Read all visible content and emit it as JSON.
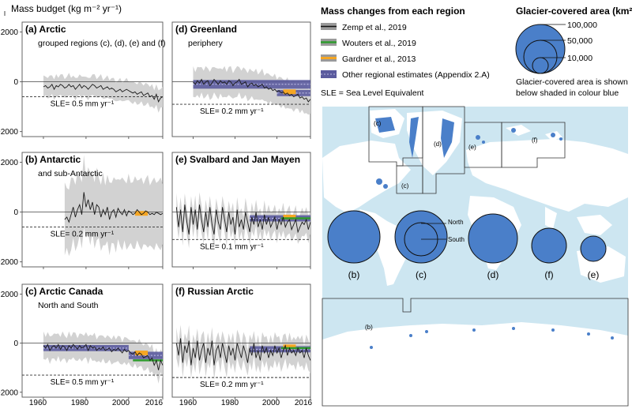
{
  "figure": {
    "ylabel": "Mass budget (kg m⁻² yr⁻¹)",
    "x_ticks": [
      "1960",
      "1980",
      "2000",
      "2016"
    ],
    "y_ticks": [
      "2000",
      "0",
      "−2000"
    ],
    "legend": {
      "title": "Mass changes from each region",
      "entries": [
        {
          "label": "Zemp et al., 2019",
          "color": "#111111"
        },
        {
          "label": "Wouters et al., 2019",
          "color": "#2e9b2e"
        },
        {
          "label": "Gardner et al., 2013",
          "color": "#f5a623"
        },
        {
          "label": "Other regional estimates (Appendix 2.A)",
          "color": "#5b5b9e"
        }
      ],
      "sle_note": "SLE = Sea Level Equivalent"
    },
    "area_legend": {
      "title": "Glacier-covered area (km²)",
      "values": [
        "100,000",
        "50,000",
        "10,000"
      ],
      "note_line1": "Glacier-covered area is shown",
      "note_line2": "below shaded in colour blue",
      "fill_color": "#4a7fc9"
    },
    "map": {
      "region_labels": [
        "(c)",
        "(d)",
        "(e)",
        "(f)",
        "(c)",
        "(b)"
      ],
      "circle_labels": [
        "(b)",
        "(c)",
        "(d)",
        "(f)",
        "(e)"
      ],
      "north": "North",
      "south": "South"
    }
  },
  "chart_data": [
    {
      "type": "line",
      "id": "a",
      "title": "(a) Arctic",
      "subtitle": "grouped regions (c), (d), (e) and (f)",
      "sle_label": "SLE= 0.5 mm yr⁻¹",
      "sle_level": -600,
      "xlim": [
        1950,
        2016
      ],
      "ylim": [
        -2200,
        2400
      ],
      "series_start": 1960,
      "values": [
        -200,
        -150,
        -250,
        -200,
        -100,
        -300,
        -150,
        -200,
        -100,
        -150,
        -250,
        -200,
        -100,
        -200,
        -150,
        -300,
        -200,
        -100,
        -250,
        -150,
        -200,
        -300,
        -200,
        -100,
        -150,
        -250,
        -200,
        -150,
        -300,
        -250,
        -200,
        -300,
        -250,
        -300,
        -400,
        -350,
        -300,
        -400,
        -350,
        -300,
        -350,
        -400,
        -450,
        -400,
        -500,
        -450,
        -400,
        -550,
        -500,
        -450,
        -600,
        -550,
        -700,
        -500,
        -800,
        -650,
        -600
      ],
      "band": 400
    },
    {
      "type": "line",
      "id": "b",
      "title": "(b) Antarctic",
      "subtitle": "and sub-Antarctic",
      "sle_label": "SLE= 0.2 mm yr⁻¹",
      "sle_level": -600,
      "xlim": [
        1950,
        2016
      ],
      "ylim": [
        -2200,
        2400
      ],
      "series_start": 1970,
      "values": [
        -300,
        -200,
        -400,
        -100,
        200,
        -200,
        100,
        300,
        -100,
        800,
        200,
        500,
        100,
        400,
        -100,
        300,
        200,
        -200,
        100,
        -100,
        200,
        -300,
        0,
        100,
        -200,
        150,
        0,
        -100,
        100,
        -150,
        50,
        0,
        -100,
        -50,
        100,
        0,
        -100,
        -50,
        50,
        0,
        -100,
        -50,
        -100,
        0,
        -50,
        -100,
        -50
      ],
      "band": 1300,
      "extras": [
        {
          "kind": "gardner",
          "x0": 2003,
          "x1": 2009,
          "y": -50
        }
      ]
    },
    {
      "type": "line",
      "id": "c",
      "title": "(c) Arctic Canada",
      "subtitle": "North and South",
      "sle_label": "SLE= 0.5 mm yr⁻¹",
      "sle_level": -1300,
      "xlim": [
        1950,
        2016
      ],
      "ylim": [
        -2200,
        2400
      ],
      "series_start": 1960,
      "values": [
        -100,
        -200,
        -50,
        -300,
        -150,
        -100,
        -200,
        -50,
        -250,
        -100,
        -150,
        -300,
        -100,
        -200,
        -50,
        -150,
        -250,
        -100,
        -200,
        -150,
        -50,
        -300,
        -100,
        -200,
        -150,
        -300,
        -200,
        -250,
        -150,
        -300,
        -250,
        -200,
        -350,
        -250,
        -300,
        -200,
        -300,
        -400,
        -250,
        -350,
        -300,
        -400,
        -450,
        -350,
        -500,
        -400,
        -450,
        -600,
        -550,
        -500,
        -700,
        -600,
        -900,
        -700,
        -1100,
        -700,
        -900
      ],
      "band": 500,
      "extras": [
        {
          "kind": "other",
          "x0": 1960,
          "x1": 2000,
          "y": -200,
          "h": 250
        },
        {
          "kind": "other",
          "x0": 2000,
          "x1": 2016,
          "y": -500,
          "h": 300
        },
        {
          "kind": "gardner",
          "x0": 2003,
          "x1": 2009,
          "y": -400
        },
        {
          "kind": "wouters",
          "x0": 2002,
          "x1": 2016,
          "y": -700
        }
      ]
    },
    {
      "type": "line",
      "id": "d",
      "title": "(d) Greenland",
      "subtitle": "periphery",
      "sle_label": "SLE= 0.2 mm yr⁻¹",
      "sle_level": -900,
      "xlim": [
        1950,
        2016
      ],
      "ylim": [
        -2200,
        2400
      ],
      "series_start": 1960,
      "values": [
        0,
        -100,
        50,
        -50,
        100,
        -100,
        0,
        50,
        -150,
        -50,
        100,
        0,
        -100,
        50,
        -50,
        0,
        -100,
        50,
        0,
        -150,
        -50,
        0,
        100,
        -100,
        -50,
        0,
        -200,
        -100,
        -50,
        -150,
        -100,
        -200,
        -150,
        -100,
        -250,
        -200,
        -300,
        -250,
        -350,
        -300,
        -400,
        -350,
        -450,
        -400,
        -500,
        -450,
        -550,
        -500,
        -600,
        -550,
        -500,
        -650,
        -600,
        -700,
        -650,
        -800,
        -700
      ],
      "band": 550,
      "extras": [
        {
          "kind": "other",
          "x0": 1960,
          "x1": 2016,
          "y": -100,
          "h": 350
        },
        {
          "kind": "other",
          "x0": 2000,
          "x1": 2016,
          "y": -450,
          "h": 250
        },
        {
          "kind": "gardner",
          "x0": 2003,
          "x1": 2009,
          "y": -400
        }
      ]
    },
    {
      "type": "line",
      "id": "e",
      "title": "(e) Svalbard and Jan Mayen",
      "subtitle": "",
      "sle_label": "SLE= 0.1 mm yr⁻¹",
      "sle_level": -1100,
      "xlim": [
        1950,
        2016
      ],
      "ylim": [
        -2200,
        2400
      ],
      "series_start": 1952,
      "values": [
        200,
        -600,
        100,
        -800,
        300,
        -400,
        -900,
        200,
        -500,
        100,
        -700,
        300,
        -300,
        -800,
        0,
        -600,
        200,
        -500,
        -900,
        100,
        -400,
        -700,
        200,
        -300,
        -800,
        0,
        -500,
        -200,
        -900,
        100,
        -600,
        -300,
        -700,
        0,
        -400,
        -800,
        -200,
        -500,
        0,
        -600,
        -300,
        -700,
        -100,
        -500,
        -200,
        -600,
        -400,
        -200,
        -700,
        -300,
        -500,
        -200,
        -600,
        -400,
        -300,
        -700,
        -500,
        -300,
        -800,
        -600,
        -400,
        -500,
        -300,
        -700,
        -400
      ],
      "band": 500,
      "extras": [
        {
          "kind": "other",
          "x0": 1987,
          "x1": 2016,
          "y": -250,
          "h": 250
        },
        {
          "kind": "gardner",
          "x0": 2003,
          "x1": 2009,
          "y": -200
        },
        {
          "kind": "wouters",
          "x0": 2002,
          "x1": 2016,
          "y": -250
        }
      ]
    },
    {
      "type": "line",
      "id": "f",
      "title": "(f) Russian Arctic",
      "subtitle": "",
      "sle_label": "SLE= 0.2 mm yr⁻¹",
      "sle_level": -1400,
      "xlim": [
        1950,
        2016
      ],
      "ylim": [
        -2200,
        2400
      ],
      "series_start": 1952,
      "values": [
        0,
        -500,
        200,
        -800,
        -100,
        -400,
        100,
        -900,
        -200,
        -600,
        100,
        -700,
        -300,
        0,
        -800,
        -200,
        -500,
        100,
        -900,
        -300,
        -100,
        -600,
        0,
        -400,
        -800,
        -100,
        -500,
        -200,
        -700,
        0,
        -300,
        -600,
        -100,
        -400,
        -800,
        -200,
        -500,
        0,
        -600,
        -300,
        -700,
        -100,
        -400,
        -200,
        -600,
        -300,
        -500,
        -100,
        -400,
        -200,
        -600,
        -300,
        -100,
        -500,
        -200,
        -400,
        -300,
        -500,
        -200,
        -400,
        -300,
        -600,
        -200,
        -500,
        -700
      ],
      "band": 550,
      "extras": [
        {
          "kind": "other",
          "x0": 1987,
          "x1": 2016,
          "y": -250,
          "h": 250
        },
        {
          "kind": "gardner",
          "x0": 2003,
          "x1": 2009,
          "y": -150
        },
        {
          "kind": "wouters",
          "x0": 2002,
          "x1": 2016,
          "y": -200
        }
      ]
    }
  ]
}
